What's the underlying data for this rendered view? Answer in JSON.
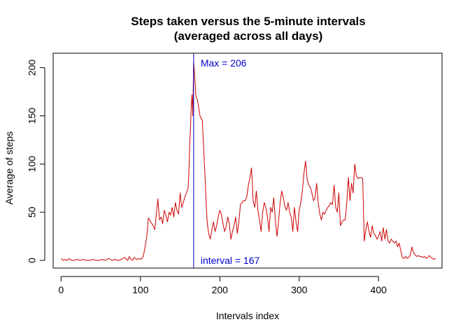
{
  "chart_data": {
    "type": "line",
    "title_line1": "Steps taken versus the 5-minute intervals",
    "title_line2": "(averaged across all days)",
    "xlabel": "Intervals index",
    "ylabel": "Average of steps",
    "xlim": [
      -10,
      480
    ],
    "ylim": [
      -8,
      215
    ],
    "x_ticks": [
      0,
      100,
      200,
      300,
      400
    ],
    "y_ticks": [
      0,
      50,
      100,
      150,
      200
    ],
    "line_color": "#cc0000",
    "annotation_color": "#0000cc",
    "max_line_x": 167,
    "max_label": "Max = 206",
    "interval_label": "interval = 167",
    "series": [
      {
        "points": [
          [
            0,
            2
          ],
          [
            3,
            0
          ],
          [
            5,
            1
          ],
          [
            8,
            0
          ],
          [
            10,
            2
          ],
          [
            13,
            0
          ],
          [
            16,
            0
          ],
          [
            20,
            1
          ],
          [
            24,
            0
          ],
          [
            28,
            1
          ],
          [
            32,
            0
          ],
          [
            36,
            0
          ],
          [
            40,
            1
          ],
          [
            44,
            0
          ],
          [
            48,
            0
          ],
          [
            52,
            1
          ],
          [
            56,
            0
          ],
          [
            60,
            2
          ],
          [
            64,
            0
          ],
          [
            68,
            1
          ],
          [
            72,
            0
          ],
          [
            76,
            1
          ],
          [
            80,
            3
          ],
          [
            84,
            0
          ],
          [
            86,
            4
          ],
          [
            88,
            1
          ],
          [
            90,
            0
          ],
          [
            92,
            3
          ],
          [
            95,
            1
          ],
          [
            98,
            2
          ],
          [
            100,
            1
          ],
          [
            103,
            3
          ],
          [
            105,
            10
          ],
          [
            108,
            25
          ],
          [
            110,
            44
          ],
          [
            113,
            40
          ],
          [
            116,
            36
          ],
          [
            118,
            32
          ],
          [
            120,
            48
          ],
          [
            122,
            64
          ],
          [
            124,
            42
          ],
          [
            126,
            45
          ],
          [
            128,
            38
          ],
          [
            130,
            52
          ],
          [
            132,
            47
          ],
          [
            134,
            40
          ],
          [
            136,
            50
          ],
          [
            138,
            47
          ],
          [
            140,
            55
          ],
          [
            142,
            45
          ],
          [
            144,
            60
          ],
          [
            146,
            52
          ],
          [
            148,
            48
          ],
          [
            150,
            70
          ],
          [
            152,
            55
          ],
          [
            154,
            60
          ],
          [
            156,
            66
          ],
          [
            158,
            70
          ],
          [
            160,
            75
          ],
          [
            161,
            90
          ],
          [
            162,
            120
          ],
          [
            163,
            135
          ],
          [
            164,
            160
          ],
          [
            165,
            172
          ],
          [
            166,
            150
          ],
          [
            167,
            206
          ],
          [
            168,
            195
          ],
          [
            170,
            170
          ],
          [
            172,
            166
          ],
          [
            175,
            150
          ],
          [
            178,
            145
          ],
          [
            180,
            110
          ],
          [
            182,
            75
          ],
          [
            184,
            40
          ],
          [
            186,
            28
          ],
          [
            188,
            22
          ],
          [
            190,
            32
          ],
          [
            192,
            40
          ],
          [
            194,
            30
          ],
          [
            196,
            36
          ],
          [
            198,
            45
          ],
          [
            200,
            52
          ],
          [
            202,
            48
          ],
          [
            204,
            38
          ],
          [
            206,
            30
          ],
          [
            208,
            35
          ],
          [
            210,
            45
          ],
          [
            212,
            38
          ],
          [
            214,
            22
          ],
          [
            216,
            30
          ],
          [
            218,
            36
          ],
          [
            220,
            45
          ],
          [
            222,
            28
          ],
          [
            224,
            40
          ],
          [
            226,
            58
          ],
          [
            228,
            60
          ],
          [
            230,
            62
          ],
          [
            232,
            62
          ],
          [
            234,
            66
          ],
          [
            236,
            78
          ],
          [
            238,
            86
          ],
          [
            240,
            96
          ],
          [
            242,
            62
          ],
          [
            244,
            55
          ],
          [
            246,
            72
          ],
          [
            248,
            52
          ],
          [
            250,
            42
          ],
          [
            252,
            30
          ],
          [
            254,
            50
          ],
          [
            256,
            60
          ],
          [
            258,
            55
          ],
          [
            260,
            45
          ],
          [
            262,
            30
          ],
          [
            264,
            55
          ],
          [
            266,
            50
          ],
          [
            268,
            65
          ],
          [
            270,
            42
          ],
          [
            272,
            25
          ],
          [
            274,
            40
          ],
          [
            276,
            60
          ],
          [
            278,
            72
          ],
          [
            280,
            65
          ],
          [
            282,
            56
          ],
          [
            284,
            52
          ],
          [
            286,
            60
          ],
          [
            288,
            50
          ],
          [
            290,
            45
          ],
          [
            292,
            30
          ],
          [
            294,
            55
          ],
          [
            296,
            40
          ],
          [
            298,
            30
          ],
          [
            300,
            52
          ],
          [
            302,
            60
          ],
          [
            304,
            72
          ],
          [
            306,
            90
          ],
          [
            308,
            103
          ],
          [
            310,
            85
          ],
          [
            312,
            78
          ],
          [
            314,
            76
          ],
          [
            316,
            70
          ],
          [
            318,
            62
          ],
          [
            320,
            65
          ],
          [
            322,
            80
          ],
          [
            324,
            60
          ],
          [
            326,
            48
          ],
          [
            328,
            42
          ],
          [
            330,
            50
          ],
          [
            332,
            48
          ],
          [
            334,
            52
          ],
          [
            336,
            55
          ],
          [
            338,
            57
          ],
          [
            340,
            60
          ],
          [
            342,
            58
          ],
          [
            344,
            78
          ],
          [
            346,
            55
          ],
          [
            348,
            50
          ],
          [
            350,
            70
          ],
          [
            352,
            36
          ],
          [
            354,
            40
          ],
          [
            356,
            42
          ],
          [
            358,
            42
          ],
          [
            360,
            60
          ],
          [
            362,
            86
          ],
          [
            364,
            62
          ],
          [
            366,
            80
          ],
          [
            368,
            70
          ],
          [
            370,
            100
          ],
          [
            372,
            88
          ],
          [
            374,
            85
          ],
          [
            376,
            86
          ],
          [
            378,
            86
          ],
          [
            380,
            85
          ],
          [
            382,
            20
          ],
          [
            384,
            32
          ],
          [
            386,
            40
          ],
          [
            388,
            30
          ],
          [
            390,
            24
          ],
          [
            392,
            36
          ],
          [
            394,
            28
          ],
          [
            396,
            26
          ],
          [
            398,
            22
          ],
          [
            400,
            25
          ],
          [
            402,
            30
          ],
          [
            404,
            20
          ],
          [
            406,
            34
          ],
          [
            408,
            22
          ],
          [
            410,
            32
          ],
          [
            412,
            20
          ],
          [
            414,
            18
          ],
          [
            416,
            22
          ],
          [
            418,
            20
          ],
          [
            420,
            18
          ],
          [
            422,
            20
          ],
          [
            424,
            14
          ],
          [
            426,
            18
          ],
          [
            428,
            10
          ],
          [
            430,
            3
          ],
          [
            432,
            2
          ],
          [
            434,
            4
          ],
          [
            436,
            2
          ],
          [
            438,
            3
          ],
          [
            440,
            5
          ],
          [
            442,
            14
          ],
          [
            444,
            8
          ],
          [
            446,
            6
          ],
          [
            448,
            4
          ],
          [
            450,
            5
          ],
          [
            452,
            4
          ],
          [
            454,
            4
          ],
          [
            456,
            3
          ],
          [
            458,
            4
          ],
          [
            460,
            2
          ],
          [
            462,
            3
          ],
          [
            464,
            5
          ],
          [
            466,
            3
          ],
          [
            468,
            2
          ],
          [
            470,
            1
          ],
          [
            472,
            2
          ]
        ]
      }
    ]
  }
}
